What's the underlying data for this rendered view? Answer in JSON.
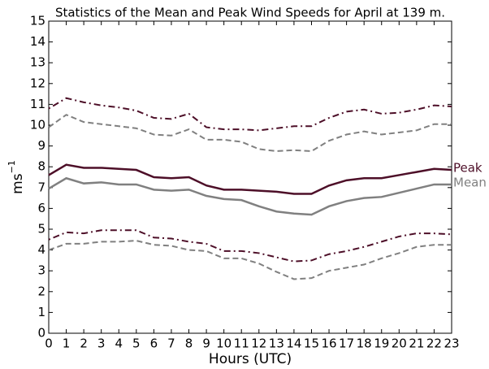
{
  "chart_data": {
    "type": "line",
    "title": "Statistics of the Mean and Peak Wind Speeds for April at 139 m.",
    "x_label": "Hours (UTC)",
    "y_label": "ms",
    "y_label_superscript": "−1",
    "x": [
      0,
      1,
      2,
      3,
      4,
      5,
      6,
      7,
      8,
      9,
      10,
      11,
      12,
      13,
      14,
      15,
      16,
      17,
      18,
      19,
      20,
      21,
      22,
      23
    ],
    "xlim": [
      0,
      23
    ],
    "xticks": [
      0,
      1,
      2,
      3,
      4,
      5,
      6,
      7,
      8,
      9,
      10,
      11,
      12,
      13,
      14,
      15,
      16,
      17,
      18,
      19,
      20,
      21,
      22,
      23
    ],
    "ylim": [
      0,
      15
    ],
    "yticks": [
      0,
      1,
      2,
      3,
      4,
      5,
      6,
      7,
      8,
      9,
      10,
      11,
      12,
      13,
      14,
      15
    ],
    "grid": false,
    "series": [
      {
        "name": "Peak",
        "color": "#4d0f28",
        "band_dash": "2 4 8 4",
        "values": [
          7.6,
          8.1,
          7.95,
          7.95,
          7.9,
          7.85,
          7.5,
          7.45,
          7.5,
          7.1,
          6.9,
          6.9,
          6.85,
          6.8,
          6.7,
          6.7,
          7.1,
          7.35,
          7.45,
          7.45,
          7.6,
          7.75,
          7.9,
          7.85
        ],
        "upper": [
          10.8,
          11.3,
          11.1,
          10.95,
          10.85,
          10.7,
          10.35,
          10.3,
          10.55,
          9.9,
          9.8,
          9.8,
          9.75,
          9.85,
          9.95,
          9.95,
          10.35,
          10.65,
          10.75,
          10.55,
          10.6,
          10.75,
          10.95,
          10.9
        ],
        "lower": [
          4.5,
          4.85,
          4.8,
          4.95,
          4.95,
          4.95,
          4.6,
          4.55,
          4.4,
          4.3,
          3.95,
          3.95,
          3.85,
          3.65,
          3.45,
          3.5,
          3.8,
          3.95,
          4.15,
          4.4,
          4.65,
          4.8,
          4.8,
          4.75
        ]
      },
      {
        "name": "Mean",
        "color": "#808080",
        "band_dash": "7 4",
        "values": [
          6.95,
          7.45,
          7.2,
          7.25,
          7.15,
          7.15,
          6.9,
          6.85,
          6.9,
          6.6,
          6.45,
          6.4,
          6.1,
          5.85,
          5.75,
          5.7,
          6.1,
          6.35,
          6.5,
          6.55,
          6.75,
          6.95,
          7.15,
          7.15
        ],
        "upper": [
          9.9,
          10.5,
          10.15,
          10.05,
          9.95,
          9.85,
          9.55,
          9.5,
          9.8,
          9.3,
          9.3,
          9.2,
          8.85,
          8.75,
          8.8,
          8.75,
          9.25,
          9.55,
          9.7,
          9.55,
          9.65,
          9.75,
          10.05,
          10.05
        ],
        "lower": [
          4.0,
          4.3,
          4.3,
          4.4,
          4.4,
          4.45,
          4.25,
          4.2,
          4.0,
          3.95,
          3.6,
          3.6,
          3.35,
          2.95,
          2.6,
          2.65,
          3.0,
          3.15,
          3.3,
          3.6,
          3.85,
          4.15,
          4.25,
          4.25
        ]
      }
    ]
  }
}
